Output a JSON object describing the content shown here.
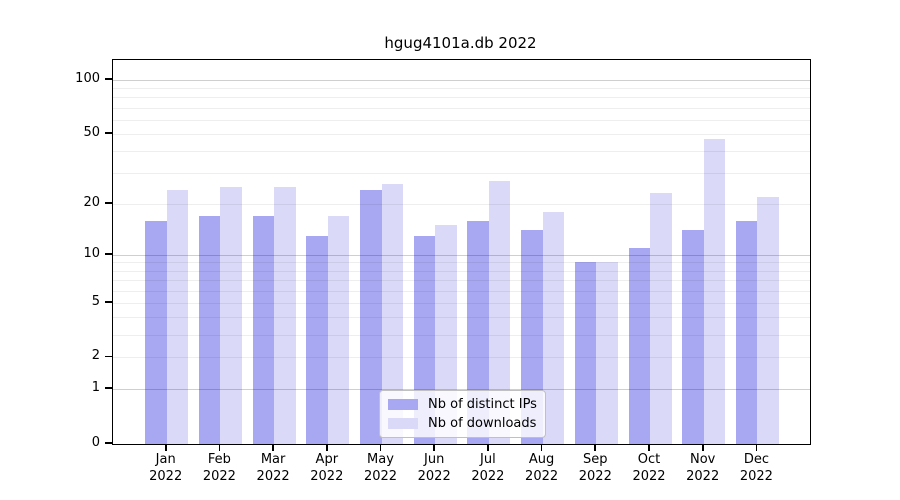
{
  "title": "hgug4101a.db 2022",
  "legend": {
    "items": [
      {
        "label": "Nb of distinct IPs",
        "key": "ips"
      },
      {
        "label": "Nb of downloads",
        "key": "downloads"
      }
    ]
  },
  "colors": {
    "ips_bar": "#a8a8f2",
    "downloads_bar": "#dadaf8",
    "axis": "#000000",
    "grid_minor": "#ececec",
    "grid_major": "#cfcfcf",
    "legend_border": "#c0c0c0"
  },
  "chart_data": {
    "type": "bar",
    "title": "hgug4101a.db 2022",
    "categories": [
      "Jan 2022",
      "Feb 2022",
      "Mar 2022",
      "Apr 2022",
      "May 2022",
      "Jun 2022",
      "Jul 2022",
      "Aug 2022",
      "Sep 2022",
      "Oct 2022",
      "Nov 2022",
      "Dec 2022"
    ],
    "series": [
      {
        "name": "Nb of distinct IPs",
        "values": [
          16,
          17,
          17,
          13,
          24,
          13,
          16,
          14,
          9,
          11,
          14,
          16
        ]
      },
      {
        "name": "Nb of downloads",
        "values": [
          24,
          25,
          25,
          17,
          26,
          15,
          27,
          18,
          9,
          23,
          47,
          22
        ]
      }
    ],
    "xlabel": "",
    "ylabel": "",
    "yscale": "log1p",
    "yticks": [
      0,
      1,
      2,
      5,
      10,
      20,
      50,
      100
    ],
    "ylim": [
      0,
      129
    ],
    "minor_gridlines": [
      2,
      3,
      4,
      5,
      6,
      7,
      8,
      9,
      20,
      30,
      40,
      50,
      60,
      70,
      80,
      90
    ],
    "major_gridlines": [
      1,
      10,
      100
    ],
    "grid": true,
    "legend_position": "lower center"
  }
}
